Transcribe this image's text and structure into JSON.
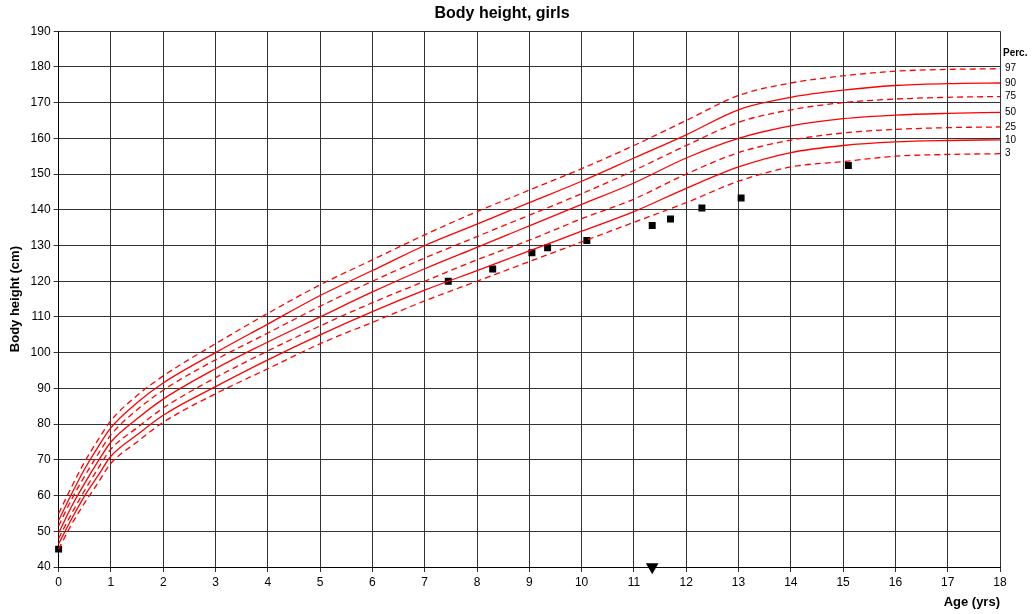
{
  "chart_data": {
    "type": "line",
    "title": "Body height, girls",
    "xlabel": "Age (yrs)",
    "ylabel": "Body height (cm)",
    "legend_title": "Perc.",
    "legend": "right",
    "grid": true,
    "x": [
      0,
      0.25,
      0.5,
      0.75,
      1,
      1.5,
      2,
      3,
      4,
      5,
      6,
      7,
      8,
      9,
      10,
      11,
      12,
      13,
      14,
      15,
      16,
      17,
      18
    ],
    "xlim": [
      0,
      18
    ],
    "xticks": [
      0,
      1,
      2,
      3,
      4,
      5,
      6,
      7,
      8,
      9,
      10,
      11,
      12,
      13,
      14,
      15,
      16,
      17,
      18
    ],
    "ylim": [
      40,
      190
    ],
    "yticks": [
      40,
      50,
      60,
      70,
      80,
      90,
      100,
      110,
      120,
      130,
      140,
      150,
      160,
      170,
      180,
      190
    ],
    "series": [
      {
        "name": "97",
        "color": "#ff0000",
        "line_style": "dashed",
        "marker": "none",
        "values": [
          55,
          62.5,
          69.5,
          75.5,
          81,
          88,
          93.5,
          102.5,
          111,
          119,
          126,
          133,
          139.5,
          145.5,
          151.5,
          158,
          165,
          172,
          175.5,
          177.5,
          178.8,
          179.3,
          179.5
        ]
      },
      {
        "name": "90",
        "color": "#ff0000",
        "line_style": "solid",
        "marker": "none",
        "values": [
          53,
          60.5,
          67.5,
          73.5,
          79,
          86,
          91.5,
          100,
          108,
          116,
          123,
          130,
          136,
          142,
          148,
          154.5,
          161,
          168,
          171.5,
          173.5,
          174.8,
          175.3,
          175.5
        ]
      },
      {
        "name": "75",
        "color": "#ff0000",
        "line_style": "dashed",
        "marker": "none",
        "values": [
          51.5,
          59,
          65.5,
          71.5,
          77,
          84,
          89.5,
          98,
          105.5,
          113,
          120,
          126.5,
          132.5,
          138.5,
          144.5,
          151,
          158,
          164.5,
          168,
          170,
          171,
          171.5,
          171.7
        ]
      },
      {
        "name": "50",
        "color": "#ff0000",
        "line_style": "solid",
        "marker": "none",
        "values": [
          49.5,
          57,
          63.5,
          69.5,
          75,
          81.5,
          87,
          95.5,
          103,
          110,
          117,
          123.5,
          129.5,
          135.5,
          141.5,
          147.5,
          154.5,
          160,
          163.5,
          165.5,
          166.5,
          167,
          167.3
        ]
      },
      {
        "name": "25",
        "color": "#ff0000",
        "line_style": "dashed",
        "marker": "none",
        "values": [
          48,
          55,
          61.5,
          67.5,
          73,
          79,
          84.5,
          93,
          100.5,
          107.5,
          114,
          120,
          126,
          131.5,
          137.5,
          143,
          150,
          156,
          159.5,
          161.5,
          162.5,
          163,
          163.2
        ]
      },
      {
        "name": "10",
        "color": "#ff0000",
        "line_style": "solid",
        "marker": "none",
        "values": [
          46.5,
          53.5,
          60,
          65.5,
          71,
          77,
          82.5,
          90.5,
          98,
          105,
          111.5,
          117.5,
          123,
          128.5,
          134,
          139.5,
          146,
          152,
          156,
          158,
          159,
          159.4,
          159.6
        ]
      },
      {
        "name": "3",
        "color": "#ff0000",
        "line_style": "dashed",
        "marker": "none",
        "values": [
          45,
          52,
          58,
          63.5,
          69,
          75,
          80.5,
          88.5,
          95.5,
          102.5,
          108.5,
          114.5,
          120,
          125.5,
          131,
          136.5,
          142,
          148,
          152,
          153.5,
          155,
          155.5,
          155.7
        ]
      },
      {
        "type": "scatter",
        "color": "#000000",
        "marker": "square",
        "x": [
          0,
          7.45,
          8.3,
          9.05,
          9.35,
          10.1,
          11.35,
          11.7,
          12.3,
          13.05,
          15.1
        ],
        "values": [
          45,
          120,
          123.4,
          128,
          129.4,
          131.4,
          135.6,
          137.4,
          140.5,
          143.3,
          152.4
        ]
      },
      {
        "type": "scatter",
        "color": "#000000",
        "marker": "triangle",
        "x": [
          11.35
        ],
        "values": [
          40
        ]
      }
    ]
  }
}
